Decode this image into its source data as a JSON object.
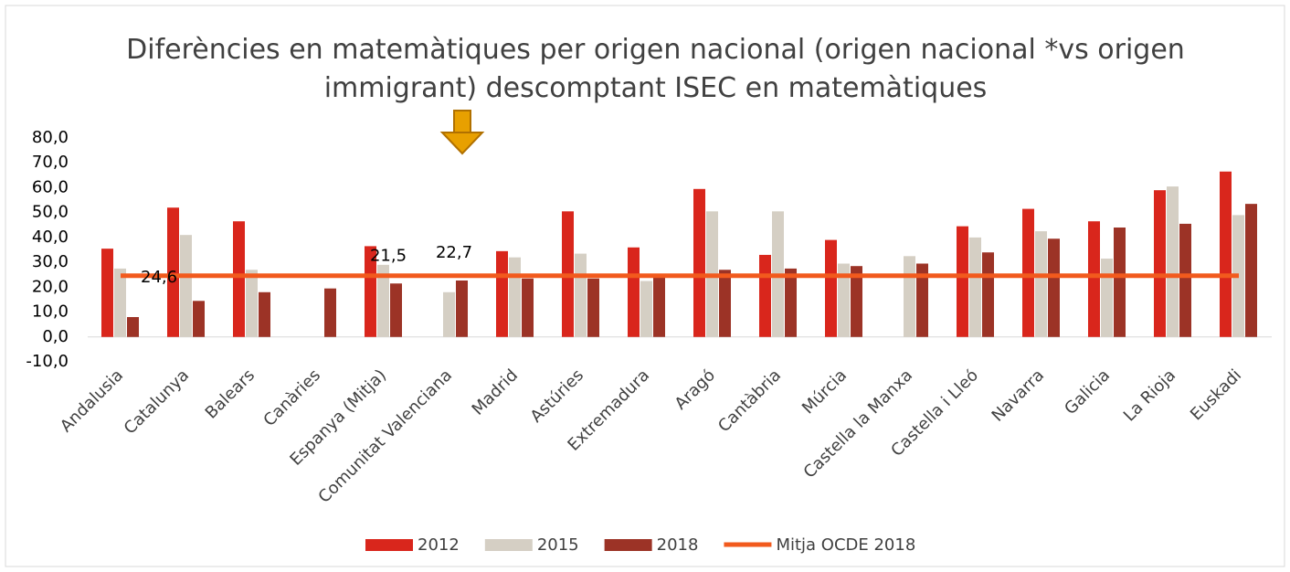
{
  "chart_data": {
    "type": "bar",
    "title": "Diferències en matemàtiques per origen nacional (origen nacional *vs origen immigrant) descomptant ISEC en matemàtiques",
    "categories": [
      "Andalusia",
      "Catalunya",
      "Balears",
      "Canàries",
      "Espanya (Mitja)",
      "Comunitat Valenciana",
      "Madrid",
      "Astúries",
      "Extremadura",
      "Aragó",
      "Cantàbria",
      "Múrcia",
      "Castella la Manxa",
      "Castella i Lleó",
      "Navarra",
      "Galicia",
      "La Rioja",
      "Euskadi"
    ],
    "series": [
      {
        "name": "2012",
        "color": "#d9261c",
        "values": [
          35.5,
          52,
          46.5,
          null,
          36.5,
          null,
          34.5,
          50.5,
          36,
          59.5,
          33,
          39,
          null,
          44.5,
          51.5,
          46.5,
          59,
          66.5
        ]
      },
      {
        "name": "2015",
        "color": "#d5cfc4",
        "values": [
          27.5,
          41,
          27,
          null,
          29,
          18,
          32,
          33.5,
          22.5,
          50.5,
          50.5,
          29.5,
          32.5,
          40,
          42.5,
          31.5,
          60.5,
          49
        ]
      },
      {
        "name": "2018",
        "color": "#9c3326",
        "values": [
          8,
          14.5,
          18,
          19.5,
          21.5,
          22.7,
          23.5,
          23.5,
          24.5,
          27,
          27.5,
          28.5,
          29.5,
          34,
          39.5,
          44,
          45.5,
          53.5
        ],
        "value_labels": [
          null,
          null,
          null,
          null,
          "21,5",
          "22,7",
          null,
          null,
          null,
          null,
          null,
          null,
          null,
          null,
          null,
          null,
          null,
          null
        ]
      },
      {
        "name": "Mitja OCDE 2018",
        "color": "#f25a1d",
        "type": "line",
        "values": [
          24.6,
          24.6,
          24.6,
          24.6,
          24.6,
          24.6,
          24.6,
          24.6,
          24.6,
          24.6,
          24.6,
          24.6,
          24.6,
          24.6,
          24.6,
          24.6,
          24.6,
          24.6
        ],
        "value_labels": [
          "24,6",
          null,
          null,
          null,
          null,
          null,
          null,
          null,
          null,
          null,
          null,
          null,
          null,
          null,
          null,
          null,
          null,
          null
        ]
      }
    ],
    "ylim": [
      -10,
      80
    ],
    "yticks": [
      {
        "value": -10,
        "label": "-10,0"
      },
      {
        "value": 0,
        "label": "0,0"
      },
      {
        "value": 10,
        "label": "10,0"
      },
      {
        "value": 20,
        "label": "20,0"
      },
      {
        "value": 30,
        "label": "30,0"
      },
      {
        "value": 40,
        "label": "40,0"
      },
      {
        "value": 50,
        "label": "50,0"
      },
      {
        "value": 60,
        "label": "60,0"
      },
      {
        "value": 70,
        "label": "70,0"
      },
      {
        "value": 80,
        "label": "80,0"
      }
    ],
    "legend": "bottom"
  }
}
